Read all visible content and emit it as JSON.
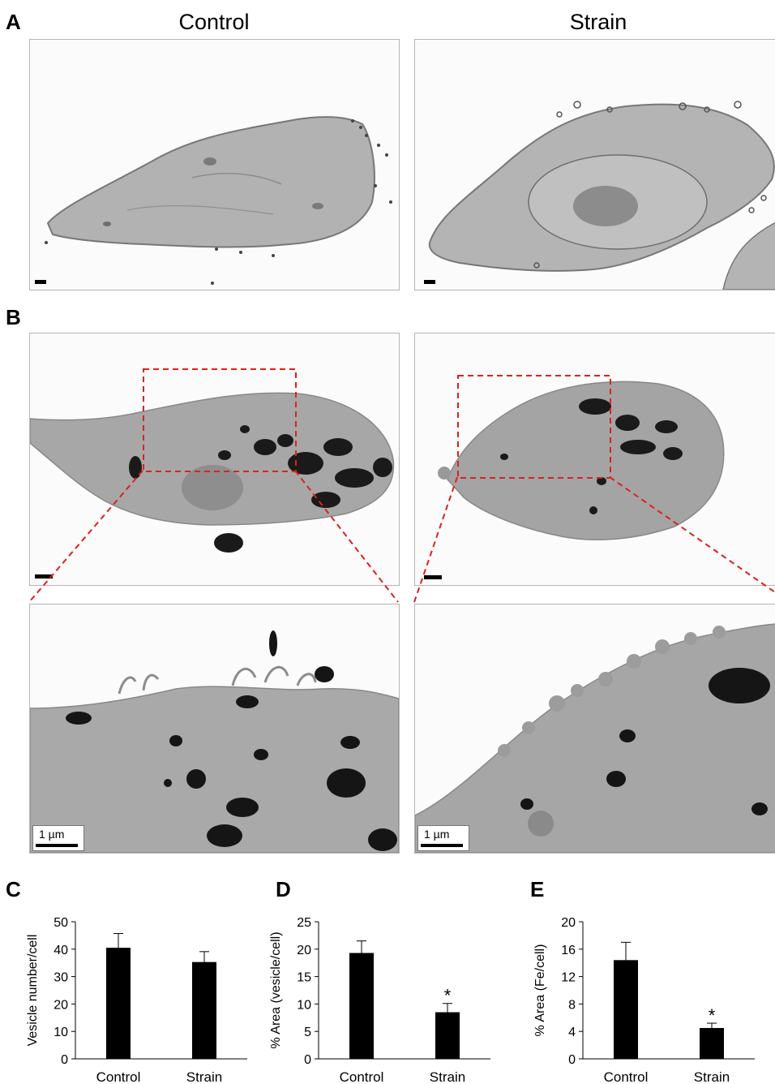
{
  "panel_letters": {
    "a": "A",
    "b": "B",
    "c": "C",
    "d": "D",
    "e": "E"
  },
  "column_titles": {
    "left": "Control",
    "right": "Strain"
  },
  "scale_labels": {
    "left": "1 µm",
    "right": "1 µm"
  },
  "colors": {
    "bar": "#000000",
    "zoom_box": "#e0201b",
    "cytoplasm": "#a9a9a9",
    "iron": "#151515"
  },
  "chart_data": [
    {
      "type": "bar",
      "panel": "C",
      "categories": [
        "Control",
        "Strain"
      ],
      "values": [
        40.5,
        35.3
      ],
      "errors": [
        5.2,
        3.8
      ],
      "ylabel": "Vesicle number/cell",
      "ylim": [
        0,
        50
      ],
      "yticks": [
        0,
        10,
        20,
        30,
        40,
        50
      ],
      "significance": [
        "",
        ""
      ]
    },
    {
      "type": "bar",
      "panel": "D",
      "categories": [
        "Control",
        "Strain"
      ],
      "values": [
        19.3,
        8.5
      ],
      "errors": [
        2.2,
        1.6
      ],
      "ylabel": "% Area (vesicle/cell)",
      "ylim": [
        0,
        25
      ],
      "yticks": [
        0,
        5,
        10,
        15,
        20,
        25
      ],
      "significance": [
        "",
        "*"
      ]
    },
    {
      "type": "bar",
      "panel": "E",
      "categories": [
        "Control",
        "Strain"
      ],
      "values": [
        14.4,
        4.5
      ],
      "errors": [
        2.6,
        0.7
      ],
      "ylabel": "% Area (Fe/cell)",
      "ylim": [
        0,
        20
      ],
      "yticks": [
        0,
        4,
        8,
        12,
        16,
        20
      ],
      "significance": [
        "",
        "*"
      ]
    }
  ]
}
